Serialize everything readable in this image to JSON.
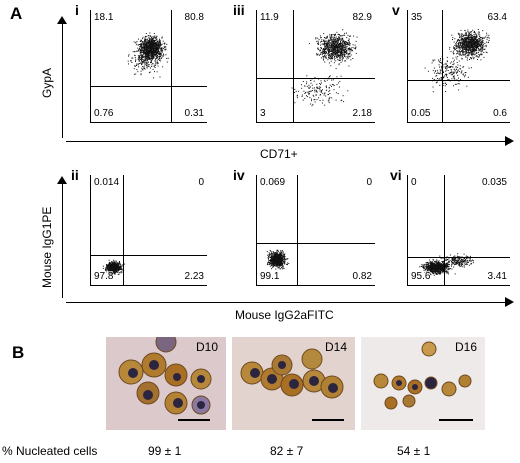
{
  "panel_labels": {
    "a": "A",
    "b": "B"
  },
  "top_row": {
    "y_axis_label": "GypA",
    "x_axis_label": "CD71+",
    "plots": [
      {
        "sub": "i",
        "ul": "18.1",
        "ur": "80.8",
        "ll": "0.76",
        "lr": "0.31",
        "density": "high"
      },
      {
        "sub": "iii",
        "ul": "11.9",
        "ur": "82.9",
        "ll": "3",
        "lr": "2.18",
        "density": "spread"
      },
      {
        "sub": "v",
        "ul": "35",
        "ur": "63.4",
        "ll": "0.05",
        "lr": "0.6",
        "density": "spread"
      }
    ]
  },
  "bottom_row": {
    "y_axis_label": "Mouse IgG1PE",
    "x_axis_label": "Mouse IgG2aFITC",
    "plots": [
      {
        "sub": "ii",
        "ul": "0.014",
        "ur": "0",
        "ll": "97.8",
        "lr": "2.23"
      },
      {
        "sub": "iv",
        "ul": "0.069",
        "ur": "0",
        "ll": "99.1",
        "lr": "0.82"
      },
      {
        "sub": "vi",
        "ul": "0",
        "ur": "0.035",
        "ll": "95.6",
        "lr": "3.41"
      }
    ]
  },
  "log_ticks": {
    "y": [
      "10^5",
      "10^4",
      "10^3",
      "10^2"
    ],
    "x": [
      "0",
      "10^2",
      "10^3",
      "10^4",
      "10^5"
    ]
  },
  "micrographs": [
    {
      "day": "D10",
      "nucleated": "99 ± 1"
    },
    {
      "day": "D14",
      "nucleated": "82 ± 7"
    },
    {
      "day": "D16",
      "nucleated": "54 ± 1"
    }
  ],
  "row_label": "% Nucleated cells",
  "colors": {
    "cell_brown": "#b07b2e",
    "nucleus": "#2c2540",
    "background_pink": "#e4d6d8"
  }
}
